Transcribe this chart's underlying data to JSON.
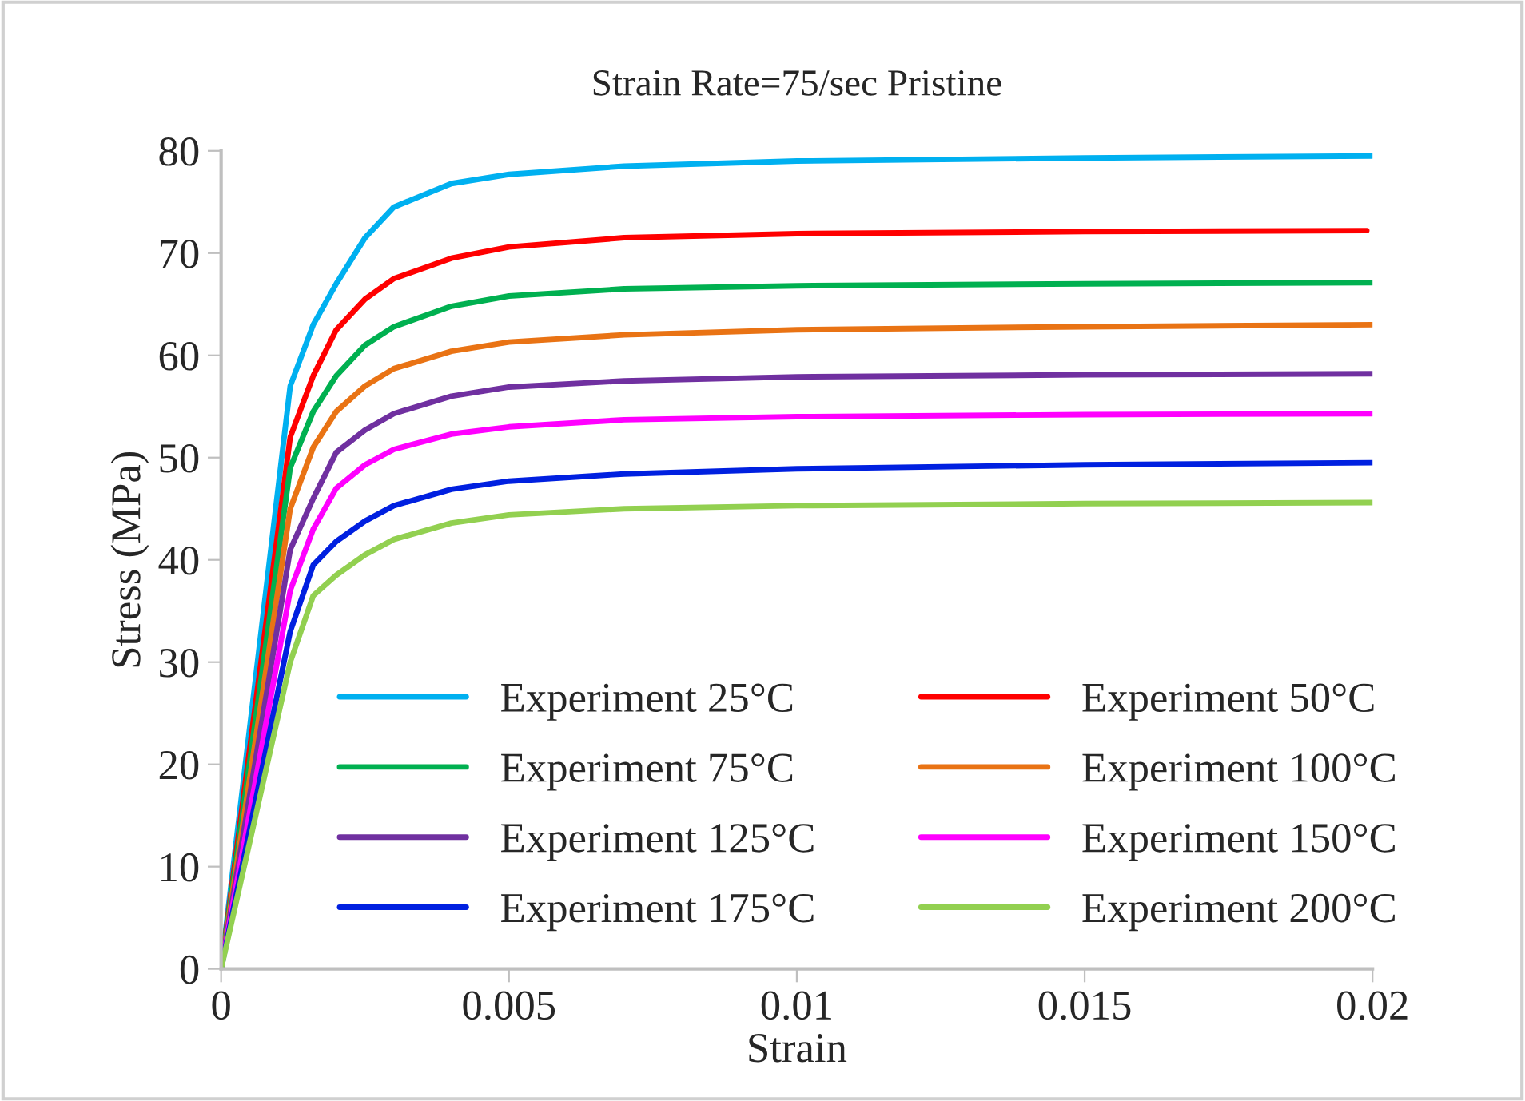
{
  "chart_data": {
    "type": "line",
    "title": "Strain Rate=75/sec Pristine",
    "xlabel": "Strain",
    "ylabel": "Stress (MPa)",
    "xlim": [
      0,
      0.02
    ],
    "xticks": [
      0,
      0.005,
      0.01,
      0.015,
      0.02
    ],
    "ylim": [
      0,
      80
    ],
    "yticks": [
      0,
      10,
      20,
      30,
      40,
      50,
      60,
      70,
      80
    ],
    "grid": false,
    "legend": "bottom",
    "marker": "none",
    "line_style": "solid",
    "x": [
      0,
      0.0012,
      0.0016,
      0.002,
      0.0025,
      0.003,
      0.004,
      0.005,
      0.007,
      0.01,
      0.015,
      0.02
    ],
    "series": [
      {
        "name": "Experiment 25°C",
        "color": "#00b0f0",
        "values": [
          0,
          57,
          63,
          67,
          71.5,
          74.5,
          76.8,
          77.7,
          78.5,
          79,
          79.3,
          79.5
        ]
      },
      {
        "name": "Experiment 50°C",
        "color": "#ff0000",
        "x": [
          0,
          0.0012,
          0.0016,
          0.002,
          0.0025,
          0.003,
          0.004,
          0.005,
          0.007,
          0.01,
          0.015,
          0.0199
        ],
        "values": [
          0,
          52,
          58,
          62.5,
          65.5,
          67.5,
          69.5,
          70.6,
          71.5,
          71.9,
          72.1,
          72.2
        ]
      },
      {
        "name": "Experiment 75°C",
        "color": "#00b050",
        "values": [
          0,
          49,
          54.5,
          58,
          61,
          62.8,
          64.8,
          65.8,
          66.5,
          66.8,
          67,
          67.1
        ]
      },
      {
        "name": "Experiment 100°C",
        "color": "#e97314",
        "values": [
          0,
          45,
          51,
          54.5,
          57,
          58.7,
          60.4,
          61.3,
          62,
          62.5,
          62.8,
          63
        ]
      },
      {
        "name": "Experiment 125°C",
        "color": "#7030a0",
        "values": [
          0,
          41,
          46,
          50.5,
          52.7,
          54.3,
          56,
          56.9,
          57.5,
          57.9,
          58.1,
          58.2
        ]
      },
      {
        "name": "Experiment 150°C",
        "color": "#ff00ff",
        "values": [
          0,
          37,
          43,
          47,
          49.3,
          50.8,
          52.3,
          53,
          53.7,
          54,
          54.2,
          54.3
        ]
      },
      {
        "name": "Experiment 175°C",
        "color": "#0020e0",
        "values": [
          0,
          33,
          39.5,
          41.8,
          43.8,
          45.3,
          46.9,
          47.7,
          48.4,
          48.9,
          49.3,
          49.5
        ]
      },
      {
        "name": "Experiment 200°C",
        "color": "#92d050",
        "values": [
          0,
          30,
          36.5,
          38.5,
          40.5,
          42,
          43.6,
          44.4,
          45,
          45.3,
          45.5,
          45.6
        ]
      }
    ]
  }
}
